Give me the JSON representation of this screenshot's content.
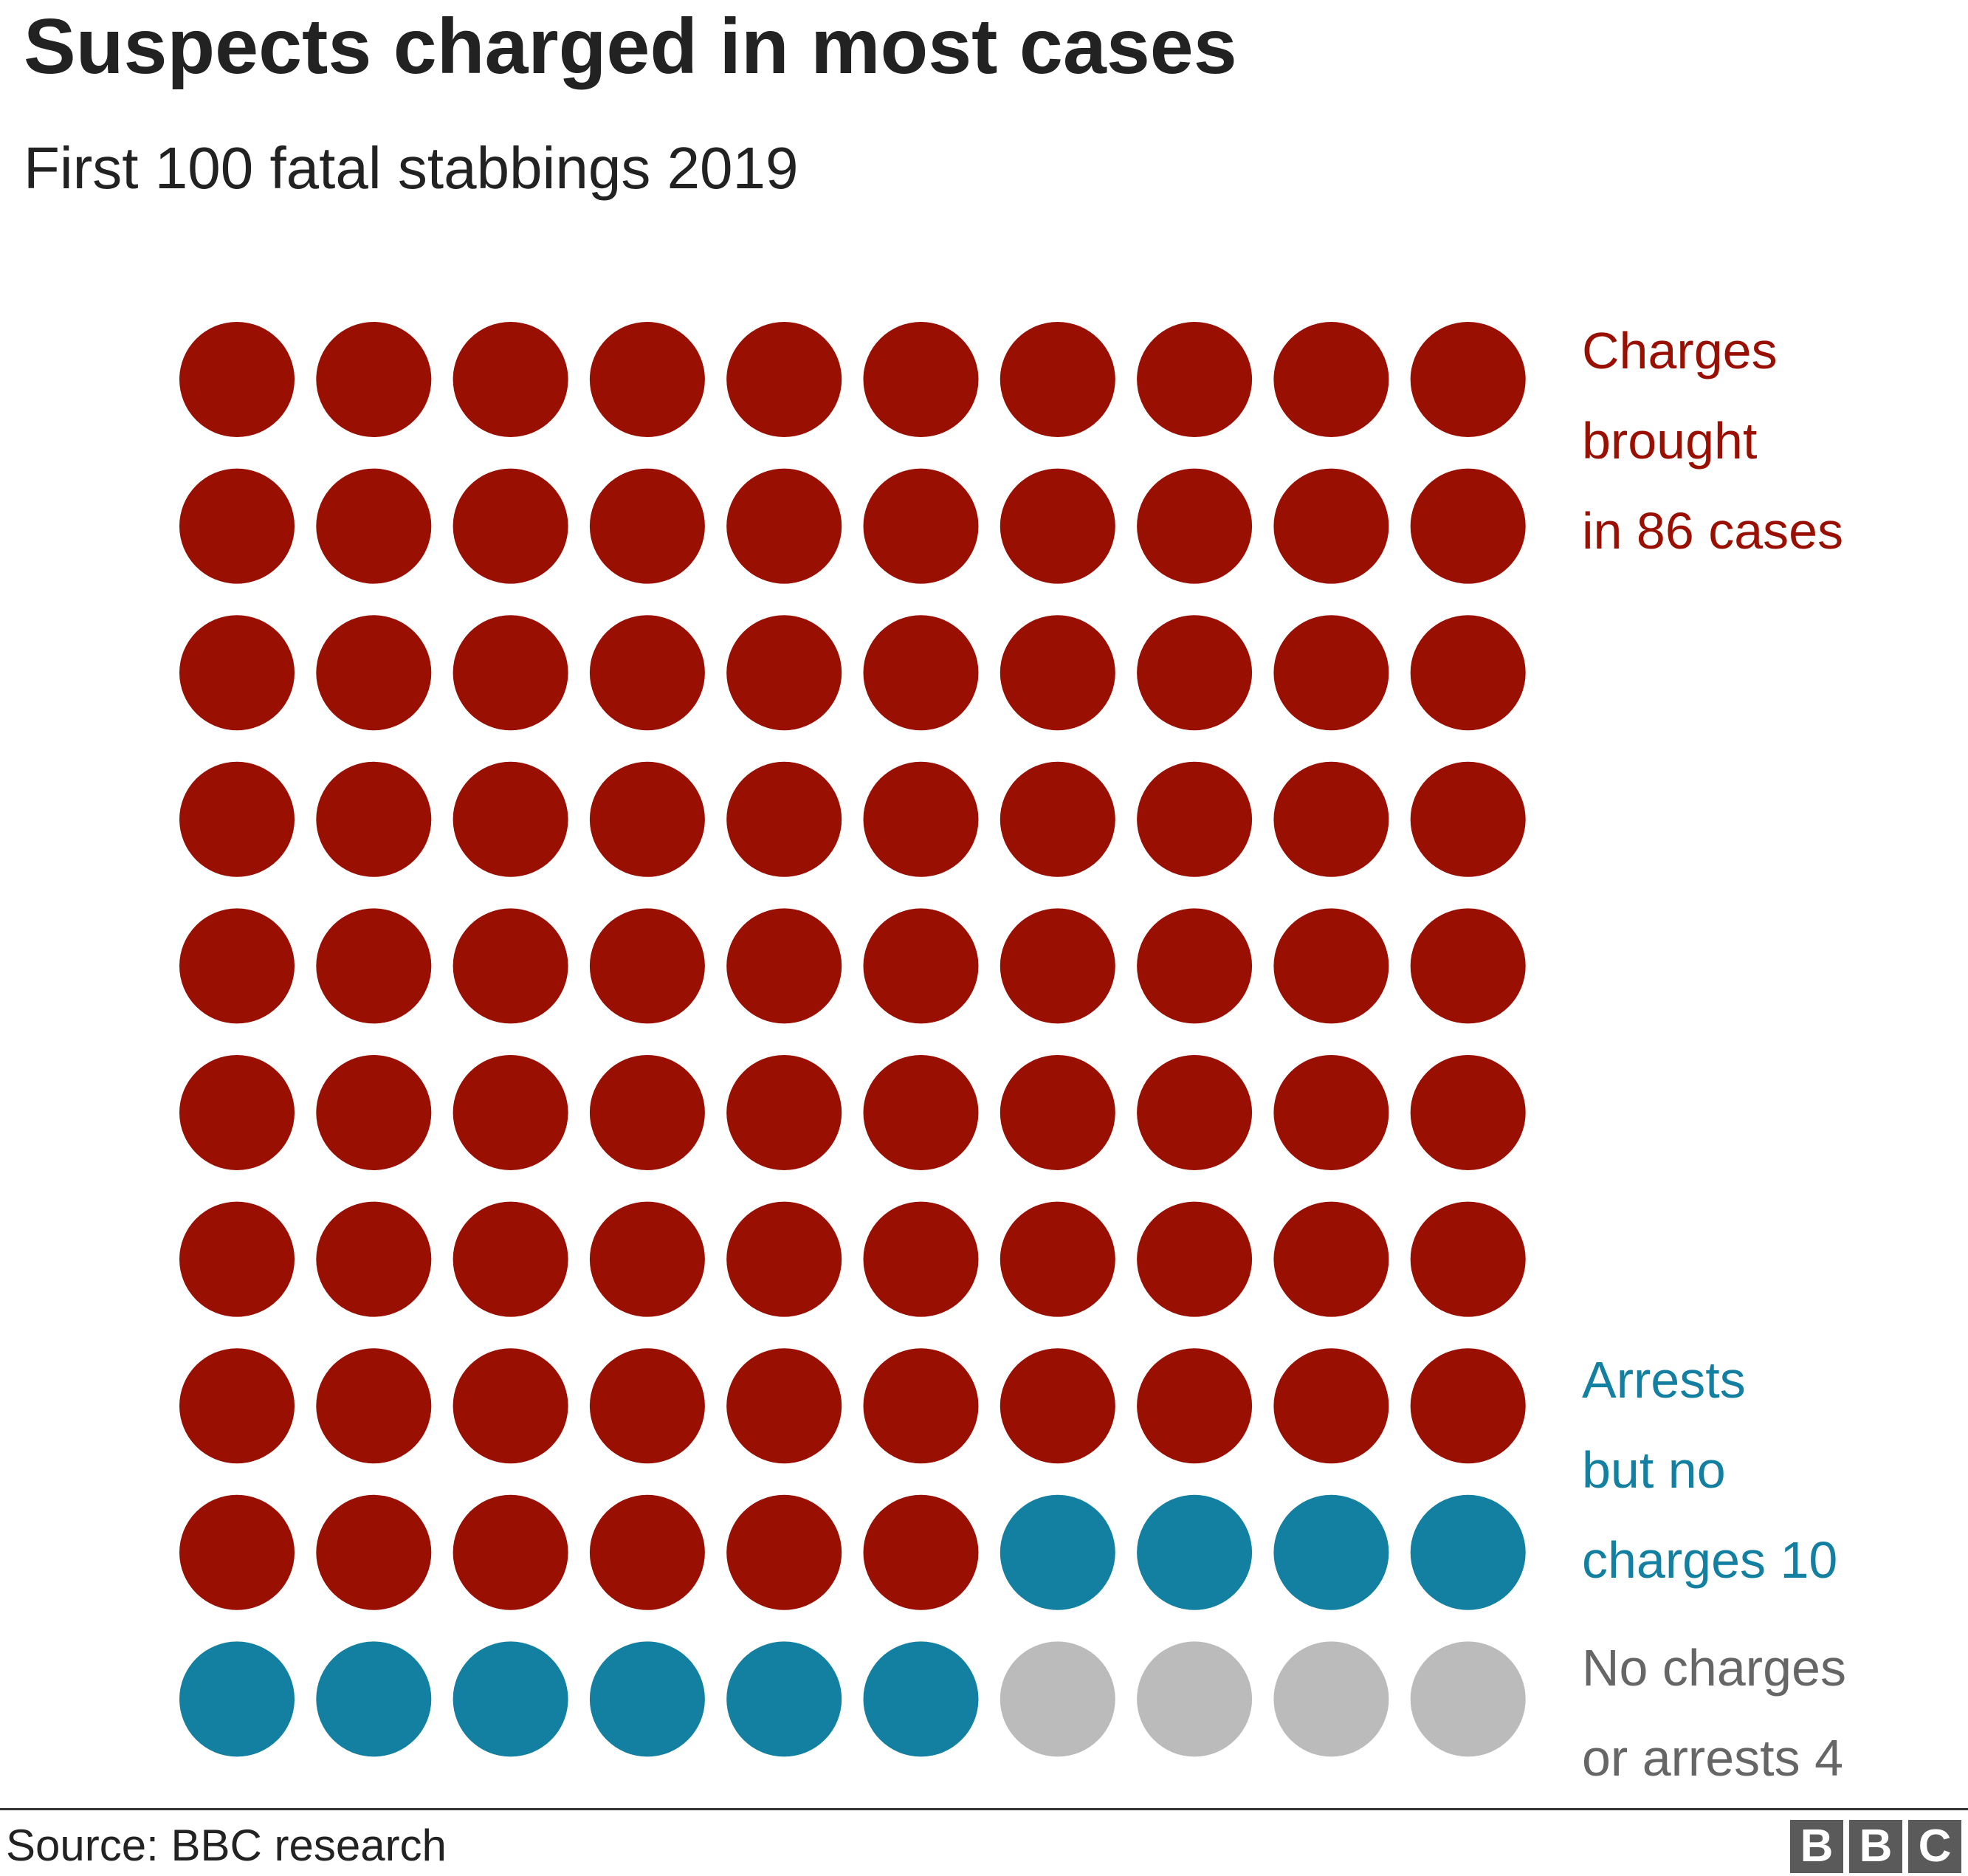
{
  "title": "Suspects charged in most cases",
  "subtitle": "First 100 fatal stabbings 2019",
  "source": "Source: BBC research",
  "logo": [
    "B",
    "B",
    "C"
  ],
  "chart_data": {
    "type": "waffle",
    "total": 100,
    "rows": 10,
    "columns": 10,
    "categories": [
      {
        "key": "charged",
        "label": "Charges\nbrought\nin 86 cases",
        "value": 86,
        "color": "#990f02"
      },
      {
        "key": "arrests",
        "label": "Arrests\nbut no\ncharges 10",
        "value": 10,
        "color": "#1380a1"
      },
      {
        "key": "none",
        "label": "No charges\nor arrests  4",
        "value": 4,
        "color": "#bbbbbb"
      }
    ]
  }
}
